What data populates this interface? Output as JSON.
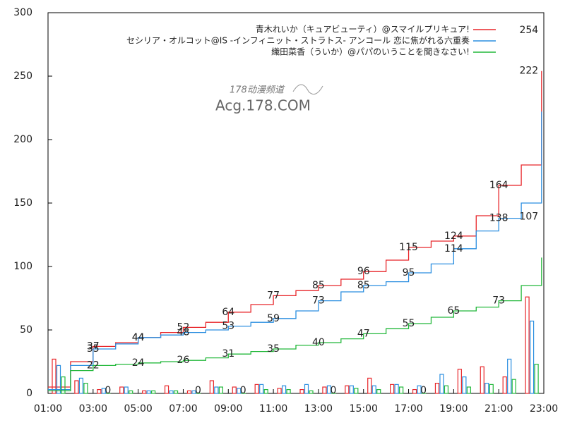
{
  "chart_data": {
    "type": "line",
    "watermark": [
      "178动漫频道",
      "Acg.178.COM"
    ],
    "xlim": [
      1,
      23
    ],
    "ylim": [
      0,
      300
    ],
    "yticks": [
      0,
      50,
      100,
      150,
      200,
      250,
      300
    ],
    "xticks": [
      {
        "value": 1,
        "label": "01:00"
      },
      {
        "value": 3,
        "label": "03:00"
      },
      {
        "value": 5,
        "label": "05:00"
      },
      {
        "value": 7,
        "label": "07:00"
      },
      {
        "value": 9,
        "label": "09:00"
      },
      {
        "value": 11,
        "label": "11:00"
      },
      {
        "value": 13,
        "label": "13:00"
      },
      {
        "value": 15,
        "label": "15:00"
      },
      {
        "value": 17,
        "label": "17:00"
      },
      {
        "value": 19,
        "label": "19:00"
      },
      {
        "value": 21,
        "label": "21:00"
      },
      {
        "value": 23,
        "label": "23:00"
      }
    ],
    "series": [
      {
        "name": "青木れいか（キュアビューティ）@スマイルプリキュア!",
        "color": "#e8262a",
        "x": [
          1,
          2,
          3,
          4,
          5,
          6,
          7,
          8,
          9,
          10,
          11,
          12,
          13,
          14,
          15,
          16,
          17,
          18,
          19,
          20,
          21,
          22,
          22.9
        ],
        "values": [
          5,
          25,
          37,
          40,
          44,
          48,
          52,
          56,
          64,
          70,
          77,
          81,
          85,
          90,
          96,
          105,
          115,
          120,
          124,
          140,
          164,
          180,
          254
        ],
        "bars": [
          27,
          10,
          3,
          5,
          2,
          6,
          2,
          10,
          5,
          7,
          4,
          3,
          5,
          6,
          12,
          7,
          3,
          8,
          19,
          21,
          13,
          76
        ]
      },
      {
        "name": "セシリア・オルコット@IS -インフィニット・ストラトス- アンコール 恋に焦がれる六重奏",
        "color": "#2a8ee0",
        "x": [
          1,
          2,
          3,
          4,
          5,
          6,
          7,
          8,
          9,
          10,
          11,
          12,
          13,
          14,
          15,
          16,
          17,
          18,
          19,
          20,
          21,
          22,
          22.9
        ],
        "values": [
          3,
          22,
          35,
          39,
          44,
          46,
          48,
          50,
          53,
          56,
          59,
          65,
          73,
          80,
          85,
          88,
          95,
          102,
          114,
          128,
          138,
          150,
          222
        ],
        "bars": [
          22,
          12,
          4,
          5,
          2,
          2,
          2,
          5,
          4,
          7,
          6,
          7,
          6,
          6,
          6,
          7,
          6,
          15,
          13,
          8,
          27,
          57
        ]
      },
      {
        "name": "織田菜香（ういか）@パパのいうことを聞きなさい!",
        "color": "#22b83a",
        "x": [
          1,
          2,
          3,
          4,
          5,
          6,
          7,
          8,
          9,
          10,
          11,
          12,
          13,
          14,
          15,
          16,
          17,
          18,
          19,
          20,
          21,
          22,
          22.9
        ],
        "values": [
          2,
          18,
          22,
          23,
          24,
          25,
          26,
          28,
          31,
          33,
          35,
          38,
          40,
          43,
          47,
          51,
          55,
          60,
          65,
          68,
          73,
          85,
          107
        ],
        "bars": [
          13,
          8,
          0,
          2,
          2,
          2,
          0,
          5,
          0,
          3,
          3,
          2,
          0,
          4,
          3,
          5,
          0,
          6,
          5,
          7,
          11,
          23
        ]
      }
    ]
  }
}
